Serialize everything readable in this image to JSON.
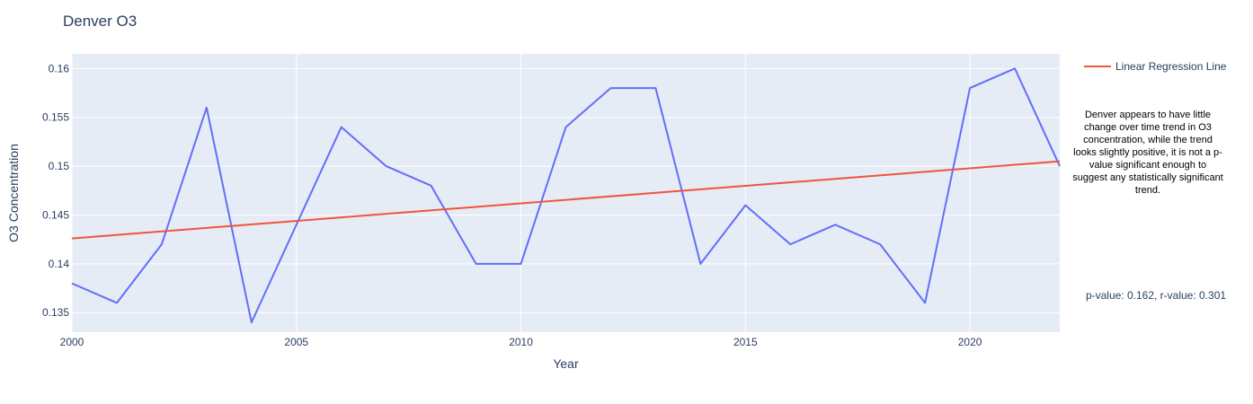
{
  "chart_data": {
    "type": "line",
    "title": "Denver O3",
    "xlabel": "Year",
    "ylabel": "O3 Concentration",
    "xlim": [
      2000,
      2022
    ],
    "ylim": [
      0.133,
      0.1615
    ],
    "xticks": [
      2000,
      2005,
      2010,
      2015,
      2020
    ],
    "yticks": [
      0.135,
      0.14,
      0.145,
      0.15,
      0.155,
      0.16
    ],
    "x": [
      2000,
      2001,
      2002,
      2003,
      2004,
      2005,
      2006,
      2007,
      2008,
      2009,
      2010,
      2011,
      2012,
      2013,
      2014,
      2015,
      2016,
      2017,
      2018,
      2019,
      2020,
      2021,
      2022
    ],
    "series": [
      {
        "values": [
          0.138,
          0.136,
          0.142,
          0.156,
          0.134,
          0.144,
          0.154,
          0.15,
          0.148,
          0.14,
          0.14,
          0.154,
          0.158,
          0.158,
          0.14,
          0.146,
          0.142,
          0.144,
          0.142,
          0.136,
          0.158,
          0.16,
          0.15
        ],
        "color": "#636efa"
      },
      {
        "name": "Linear Regression Line",
        "x": [
          2000,
          2022
        ],
        "values": [
          0.1426,
          0.1505
        ],
        "color": "#ef553b"
      }
    ],
    "grid": true,
    "legend": "top-right"
  },
  "annotation": {
    "text": "Denver appears to have little change over time trend in O3 concentration, while the trend looks slightly positive, it is not a p-value significant enough to suggest any statistically significant trend."
  },
  "stats": {
    "text": "p-value: 0.162, r-value: 0.301"
  },
  "colors": {
    "plot_background": "#e5ecf6",
    "gridline": "#ffffff",
    "text": "#2a3f5f"
  }
}
